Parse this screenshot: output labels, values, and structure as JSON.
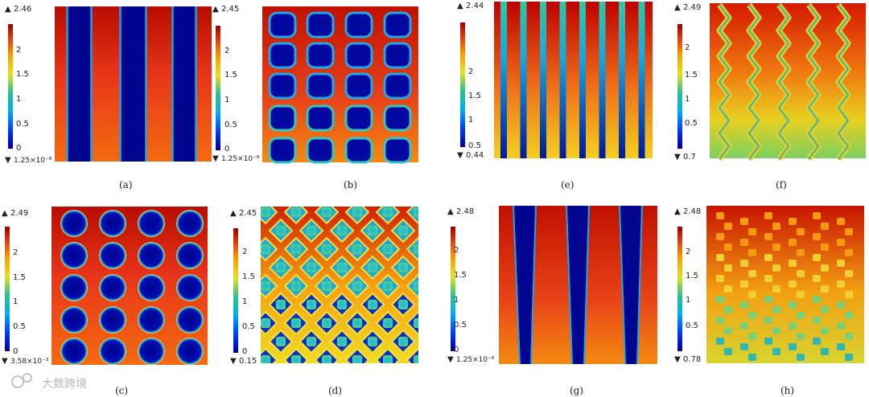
{
  "panels": [
    {
      "id": "a",
      "caption": "(a)",
      "max_label": "2.46",
      "min_label": "1.25×10⁻⁸",
      "ticks": [
        "2",
        "1.5",
        "1",
        "0.5",
        "0"
      ],
      "pattern": "wide-stripes"
    },
    {
      "id": "b",
      "caption": "(b)",
      "max_label": "2.45",
      "min_label": "1.25×10⁻⁸",
      "ticks": [
        "2",
        "1.5",
        "1",
        "0.5",
        "0"
      ],
      "pattern": "rounded-squares"
    },
    {
      "id": "e",
      "caption": "(e)",
      "max_label": "2.44",
      "min_label": "0.44",
      "ticks": [
        "2",
        "1.5",
        "1",
        "0.5"
      ],
      "pattern": "thin-stripes"
    },
    {
      "id": "f",
      "caption": "(f)",
      "max_label": "2.49",
      "min_label": "0.7",
      "ticks": [
        "2",
        "1.5",
        "1",
        "0.5"
      ],
      "pattern": "zigzag-stripes"
    },
    {
      "id": "c",
      "caption": "(c)",
      "max_label": "2.49",
      "min_label": "3.58×10⁻³",
      "ticks": [
        "2",
        "1.5",
        "1",
        "0.5",
        "0"
      ],
      "pattern": "circles"
    },
    {
      "id": "d",
      "caption": "(d)",
      "max_label": "2.45",
      "min_label": "0.15",
      "ticks": [
        "2",
        "1.5",
        "1",
        "0.5",
        "0"
      ],
      "pattern": "diamonds"
    },
    {
      "id": "g",
      "caption": "(g)",
      "max_label": "2.48",
      "min_label": "1.25×10⁻⁸",
      "ticks": [
        "2",
        "1.5",
        "1",
        "0.5",
        "0"
      ],
      "pattern": "tapered-stripes"
    },
    {
      "id": "h",
      "caption": "(h)",
      "max_label": "2.48",
      "min_label": "0.78",
      "ticks": [
        "2",
        "1.5",
        "1",
        "0.5"
      ],
      "pattern": "staggered-squares"
    }
  ],
  "colormap": [
    "#00008f",
    "#0035ff",
    "#00b0f0",
    "#2fc08f",
    "#e8e020",
    "#f5a000",
    "#e04010",
    "#9c0000"
  ],
  "watermark": "大数跨境"
}
